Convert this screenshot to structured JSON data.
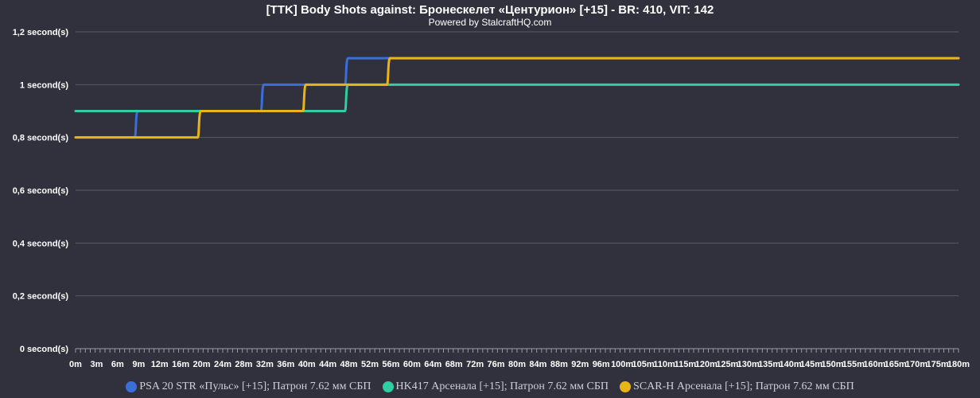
{
  "chart_data": {
    "type": "line",
    "title": "[TTK] Body Shots against: Бронескелет «Центурион» [+15] - BR: 410, VIT: 142",
    "subtitle": "Powered by StalcraftHQ.com",
    "x": [
      "0m",
      "3m",
      "6m",
      "9m",
      "12m",
      "16m",
      "20m",
      "24m",
      "28m",
      "32m",
      "36m",
      "40m",
      "44m",
      "48m",
      "52m",
      "56m",
      "60m",
      "64m",
      "68m",
      "72m",
      "76m",
      "80m",
      "84m",
      "88m",
      "92m",
      "96m",
      "100m",
      "105m",
      "110m",
      "115m",
      "120m",
      "125m",
      "130m",
      "135m",
      "140m",
      "145m",
      "150m",
      "155m",
      "160m",
      "165m",
      "170m",
      "175m",
      "180m"
    ],
    "y_ticks": [
      "0 second(s)",
      "0,2 second(s)",
      "0,4 second(s)",
      "0,6 second(s)",
      "0,8 second(s)",
      "1 second(s)",
      "1,2 second(s)"
    ],
    "ylim": [
      0,
      1.2
    ],
    "grid": true,
    "legend_position": "bottom",
    "series": [
      {
        "name": "PSA 20 STR «Пульс» [+15]; Патрон 7.62 мм СБП",
        "color": "#3a6fd8",
        "values": [
          0.8,
          0.8,
          0.8,
          0.9,
          0.9,
          0.9,
          0.9,
          0.9,
          0.9,
          1.0,
          1.0,
          1.0,
          1.0,
          1.1,
          1.1,
          1.1,
          1.1,
          1.1,
          1.1,
          1.1,
          1.1,
          1.1,
          1.1,
          1.1,
          1.1,
          1.1,
          1.1,
          1.1,
          1.1,
          1.1,
          1.1,
          1.1,
          1.1,
          1.1,
          1.1,
          1.1,
          1.1,
          1.1,
          1.1,
          1.1,
          1.1,
          1.1,
          1.1
        ]
      },
      {
        "name": "HK417 Арсенала [+15]; Патрон 7.62 мм СБП",
        "color": "#2ecfa0",
        "values": [
          0.9,
          0.9,
          0.9,
          0.9,
          0.9,
          0.9,
          0.9,
          0.9,
          0.9,
          0.9,
          0.9,
          0.9,
          0.9,
          1.0,
          1.0,
          1.0,
          1.0,
          1.0,
          1.0,
          1.0,
          1.0,
          1.0,
          1.0,
          1.0,
          1.0,
          1.0,
          1.0,
          1.0,
          1.0,
          1.0,
          1.0,
          1.0,
          1.0,
          1.0,
          1.0,
          1.0,
          1.0,
          1.0,
          1.0,
          1.0,
          1.0,
          1.0,
          1.0
        ]
      },
      {
        "name": "SCAR-H Арсенала [+15]; Патрон 7.62 мм СБП",
        "color": "#e8b417",
        "values": [
          0.8,
          0.8,
          0.8,
          0.8,
          0.8,
          0.8,
          0.9,
          0.9,
          0.9,
          0.9,
          0.9,
          1.0,
          1.0,
          1.0,
          1.0,
          1.1,
          1.1,
          1.1,
          1.1,
          1.1,
          1.1,
          1.1,
          1.1,
          1.1,
          1.1,
          1.1,
          1.1,
          1.1,
          1.1,
          1.1,
          1.1,
          1.1,
          1.1,
          1.1,
          1.1,
          1.1,
          1.1,
          1.1,
          1.1,
          1.1,
          1.1,
          1.1,
          1.1
        ]
      }
    ]
  }
}
